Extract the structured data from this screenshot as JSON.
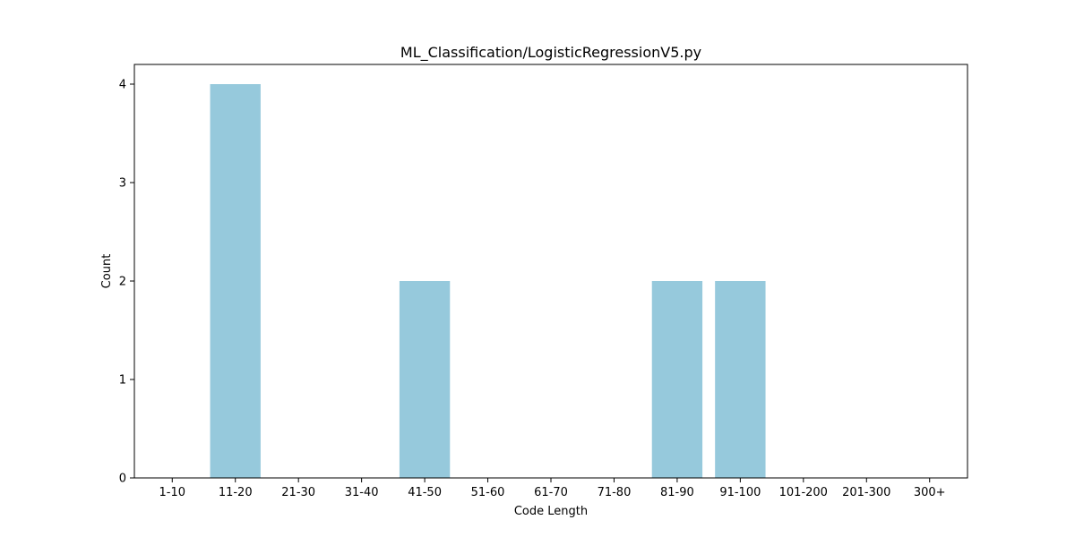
{
  "chart_data": {
    "type": "bar",
    "title": "ML_Classification/LogisticRegressionV5.py",
    "xlabel": "Code Length",
    "ylabel": "Count",
    "categories": [
      "1-10",
      "11-20",
      "21-30",
      "31-40",
      "41-50",
      "51-60",
      "61-70",
      "71-80",
      "81-90",
      "91-100",
      "101-200",
      "201-300",
      "300+"
    ],
    "values": [
      0,
      4,
      0,
      0,
      2,
      0,
      0,
      0,
      2,
      2,
      0,
      0,
      0
    ],
    "ylim": [
      0,
      4.2
    ],
    "yticks": [
      0,
      1,
      2,
      3,
      4
    ],
    "grid": false,
    "bar_color": "#96c9dc"
  }
}
